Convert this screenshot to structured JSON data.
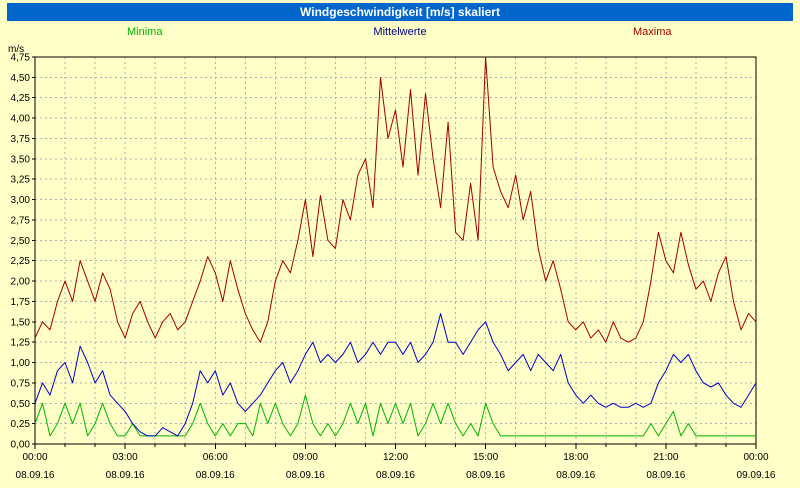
{
  "title": "Windgeschwindigkeit [m/s] skaliert",
  "legend": {
    "minima": "Minima",
    "mittelwerte": "Mittelwerte",
    "maxima": "Maxima"
  },
  "colors": {
    "background": "#ffffc8",
    "titlebar": "#0066cc",
    "minima": "#00b400",
    "mittelwerte": "#0000cc",
    "maxima": "#a00000",
    "grid": "#b0b0b0",
    "axis": "#000000"
  },
  "chart_data": {
    "type": "line",
    "title": "Windgeschwindigkeit [m/s] skaliert",
    "ylabel": "m/s",
    "ylim": [
      0,
      4.75
    ],
    "y_tick_step": 0.25,
    "y_tick_labels": [
      "0,00",
      "0,25",
      "0,50",
      "0,75",
      "1,00",
      "1,25",
      "1,50",
      "1,75",
      "2,00",
      "2,25",
      "2,50",
      "2,75",
      "3,00",
      "3,25",
      "3,50",
      "3,75",
      "4,00",
      "4,25",
      "4,50",
      "4,75"
    ],
    "x_hours_range": [
      0,
      24
    ],
    "x_tick_hours": [
      0,
      3,
      6,
      9,
      12,
      15,
      18,
      21,
      24
    ],
    "x_tick_labels": [
      "00:00",
      "03:00",
      "06:00",
      "09:00",
      "12:00",
      "15:00",
      "18:00",
      "21:00",
      "00:00"
    ],
    "x_tick_dates": [
      "08.09.16",
      "08.09.16",
      "08.09.16",
      "08.09.16",
      "08.09.16",
      "08.09.16",
      "08.09.16",
      "08.09.16",
      "09.09.16"
    ],
    "grid": true,
    "legend_position": "top",
    "sample_interval_minutes": 15,
    "series": [
      {
        "name": "Minima",
        "color": "#00b400",
        "values": [
          0.25,
          0.5,
          0.1,
          0.25,
          0.5,
          0.25,
          0.5,
          0.1,
          0.25,
          0.5,
          0.25,
          0.1,
          0.1,
          0.25,
          0.1,
          0.1,
          0.1,
          0.1,
          0.1,
          0.1,
          0.1,
          0.25,
          0.5,
          0.25,
          0.1,
          0.25,
          0.1,
          0.25,
          0.25,
          0.1,
          0.5,
          0.25,
          0.5,
          0.25,
          0.1,
          0.25,
          0.6,
          0.25,
          0.1,
          0.25,
          0.1,
          0.25,
          0.5,
          0.25,
          0.5,
          0.1,
          0.5,
          0.25,
          0.5,
          0.25,
          0.5,
          0.1,
          0.25,
          0.5,
          0.25,
          0.5,
          0.25,
          0.1,
          0.25,
          0.1,
          0.5,
          0.25,
          0.1,
          0.1,
          0.1,
          0.1,
          0.1,
          0.1,
          0.1,
          0.1,
          0.1,
          0.1,
          0.1,
          0.1,
          0.1,
          0.1,
          0.1,
          0.1,
          0.1,
          0.1,
          0.1,
          0.1,
          0.25,
          0.1,
          0.25,
          0.4,
          0.1,
          0.25,
          0.1,
          0.1,
          0.1,
          0.1,
          0.1,
          0.1,
          0.1,
          0.1,
          0.1
        ]
      },
      {
        "name": "Mittelwerte",
        "color": "#0000cc",
        "values": [
          0.5,
          0.75,
          0.6,
          0.9,
          1.0,
          0.75,
          1.2,
          1.0,
          0.75,
          0.9,
          0.6,
          0.5,
          0.4,
          0.25,
          0.15,
          0.1,
          0.1,
          0.2,
          0.15,
          0.1,
          0.25,
          0.5,
          0.9,
          0.75,
          0.9,
          0.6,
          0.75,
          0.5,
          0.4,
          0.5,
          0.6,
          0.75,
          0.9,
          1.0,
          0.75,
          0.9,
          1.1,
          1.25,
          1.0,
          1.1,
          1.0,
          1.1,
          1.25,
          1.0,
          1.1,
          1.25,
          1.1,
          1.25,
          1.25,
          1.1,
          1.25,
          1.0,
          1.1,
          1.25,
          1.6,
          1.25,
          1.25,
          1.1,
          1.25,
          1.4,
          1.5,
          1.25,
          1.1,
          0.9,
          1.0,
          1.1,
          0.9,
          1.1,
          1.0,
          0.9,
          1.1,
          0.75,
          0.6,
          0.5,
          0.6,
          0.5,
          0.45,
          0.5,
          0.45,
          0.45,
          0.5,
          0.45,
          0.5,
          0.75,
          0.9,
          1.1,
          1.0,
          1.1,
          0.9,
          0.75,
          0.7,
          0.75,
          0.6,
          0.5,
          0.45,
          0.6,
          0.75
        ]
      },
      {
        "name": "Maxima",
        "color": "#a00000",
        "values": [
          1.3,
          1.5,
          1.4,
          1.75,
          2.0,
          1.75,
          2.25,
          2.0,
          1.75,
          2.1,
          1.9,
          1.5,
          1.3,
          1.6,
          1.75,
          1.5,
          1.3,
          1.5,
          1.6,
          1.4,
          1.5,
          1.75,
          2.0,
          2.3,
          2.1,
          1.75,
          2.25,
          1.9,
          1.6,
          1.4,
          1.25,
          1.5,
          2.0,
          2.25,
          2.1,
          2.5,
          3.0,
          2.3,
          3.05,
          2.5,
          2.4,
          3.0,
          2.75,
          3.3,
          3.5,
          2.9,
          4.5,
          3.75,
          4.1,
          3.4,
          4.35,
          3.3,
          4.3,
          3.5,
          2.9,
          3.95,
          2.6,
          2.5,
          3.2,
          2.5,
          4.75,
          3.4,
          3.1,
          2.9,
          3.3,
          2.75,
          3.1,
          2.4,
          2.0,
          2.25,
          1.9,
          1.5,
          1.4,
          1.5,
          1.3,
          1.4,
          1.25,
          1.5,
          1.3,
          1.25,
          1.3,
          1.5,
          2.0,
          2.6,
          2.25,
          2.1,
          2.6,
          2.2,
          1.9,
          2.0,
          1.75,
          2.1,
          2.3,
          1.75,
          1.4,
          1.6,
          1.5
        ]
      }
    ]
  }
}
